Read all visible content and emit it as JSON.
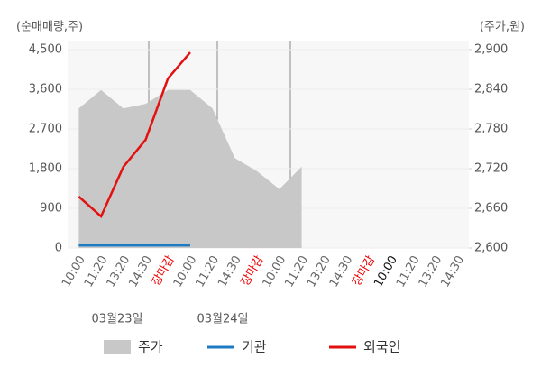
{
  "chart_data": {
    "type": "line",
    "y_axis_title": "(순매매량,주)",
    "y2_axis_title": "(주가,원)",
    "categories": [
      "10:00",
      "11:20",
      "13:20",
      "14:30",
      "장마감",
      "10:00",
      "11:20",
      "14:30",
      "장마감",
      "10:00",
      "11:20",
      "13:20",
      "14:30",
      "장마감",
      "10:00",
      "11:20",
      "13:20",
      "14:30"
    ],
    "category_colors": [
      "#666",
      "#666",
      "#666",
      "#666",
      "#e00",
      "#666",
      "#666",
      "#666",
      "#e00",
      "#666",
      "#666",
      "#666",
      "#666",
      "#e00",
      "#111",
      "#666",
      "#666",
      "#666"
    ],
    "date_labels": [
      "03월23일",
      "03월24일"
    ],
    "ylim": [
      0,
      4500
    ],
    "yticks": [
      0,
      900,
      {
        "value": 1800,
        "label": "1,800"
      },
      {
        "value": 2700,
        "label": "2,700"
      },
      {
        "value": 3600,
        "label": "3,600"
      },
      {
        "value": 4500,
        "label": "4,500"
      }
    ],
    "y2lim": [
      2600,
      2900
    ],
    "y2ticks": [
      {
        "value": 2600,
        "label": "2,600"
      },
      {
        "value": 2660,
        "label": "2,660"
      },
      {
        "value": 2720,
        "label": "2,720"
      },
      {
        "value": 2780,
        "label": "2,780"
      },
      {
        "value": 2840,
        "label": "2,840"
      },
      {
        "value": 2900,
        "label": "2,900"
      }
    ],
    "grid": true,
    "series": [
      {
        "name": "주가",
        "color": "#c8c8c8",
        "kind": "area",
        "axis": "y2",
        "values": [
          2811,
          2839,
          2811,
          2818,
          2839,
          2839,
          2811,
          2736,
          2716,
          2689,
          2723,
          null,
          null,
          null,
          null,
          null,
          null,
          null
        ]
      },
      {
        "name": "기관",
        "color": "#1f7ac4",
        "kind": "line",
        "values": [
          60,
          60,
          60,
          60,
          60,
          60,
          null,
          null,
          null,
          null,
          null,
          null,
          null,
          null,
          null,
          null,
          null,
          null
        ]
      },
      {
        "name": "외국인",
        "color": "#e31010",
        "kind": "line",
        "values": [
          1166,
          716,
          1841,
          2455,
          3845,
          4438,
          null,
          null,
          null,
          null,
          null,
          null,
          null,
          null,
          null,
          null,
          null,
          null
        ]
      }
    ]
  }
}
